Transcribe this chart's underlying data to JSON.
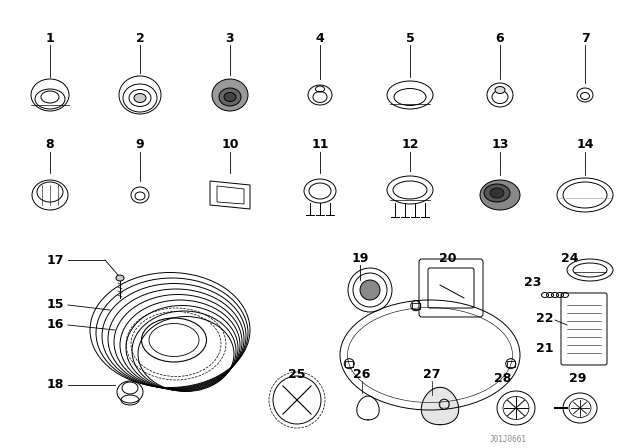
{
  "bg_color": "#ffffff",
  "line_color": "#000000",
  "label_color": "#000000",
  "fig_width": 6.4,
  "fig_height": 4.48,
  "dpi": 100,
  "watermark": "J01J0661"
}
